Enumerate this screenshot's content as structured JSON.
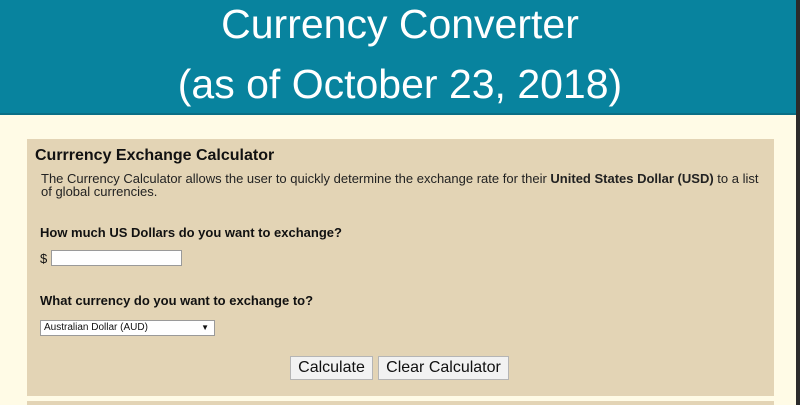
{
  "header": {
    "title_line1": "Currency Converter",
    "title_line2": "(as of October 23, 2018)"
  },
  "calculator": {
    "title": "Currrency Exchange Calculator",
    "description_prefix": "The Currency Calculator allows the user to quickly determine the exchange rate for their ",
    "description_bold": "United States Dollar (USD)",
    "description_suffix": " to a list of global currencies.",
    "amount_question": "How much US Dollars do you want to exchange?",
    "currency_symbol": "$",
    "amount_value": "",
    "currency_question": "What currency do you want to exchange to?",
    "selected_currency": "Australian Dollar (AUD)",
    "calculate_label": "Calculate",
    "clear_label": "Clear Calculator"
  },
  "colors": {
    "header_bg": "#08839e",
    "page_bg": "#fffbe6",
    "panel_bg": "#e3d4b5"
  },
  "icons": {
    "dropdown": "caret-down-icon"
  }
}
